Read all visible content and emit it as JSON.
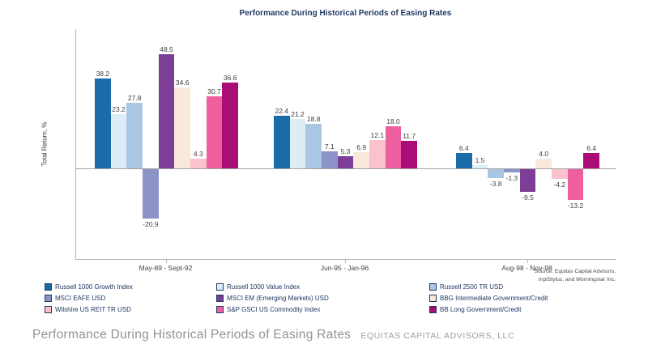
{
  "source": {
    "line1": "Source: Equitas Capital Advisors,",
    "line2": "mpiStylus, and Morningstar Inc."
  },
  "footer": {
    "caption": "Performance During Historical Periods of Easing Rates",
    "brand": "EQUITAS CAPITAL ADVISORS, LLC"
  },
  "chart_data": {
    "type": "bar",
    "title": "Performance During Historical Periods of Easing Rates",
    "xlabel": "",
    "ylabel": "Total Return, %",
    "ylim": [
      -38,
      59
    ],
    "grid": false,
    "legend_position": "bottom",
    "categories": [
      "May-89 - Sept-92",
      "Jun-95 - Jan-96",
      "Aug-98 - Nov-98"
    ],
    "series": [
      {
        "name": "Russell 1000 Growth Index",
        "color": "#1a6ca8",
        "values": [
          38.2,
          22.4,
          6.4
        ]
      },
      {
        "name": "Russell 1000 Value Index",
        "color": "#ddedf5",
        "values": [
          23.2,
          21.2,
          1.5
        ]
      },
      {
        "name": "Russell 2500 TR USD",
        "color": "#a9c6e2",
        "values": [
          27.8,
          18.8,
          -3.8
        ]
      },
      {
        "name": "MSCI EAFE USD",
        "color": "#8b93c7",
        "values": [
          -20.9,
          7.1,
          -1.3
        ]
      },
      {
        "name": "MSCI EM (Emerging Markets) USD",
        "color": "#7c3e97",
        "values": [
          48.5,
          5.3,
          -9.5
        ]
      },
      {
        "name": "BBG Intermediate Government/Credit",
        "color": "#fbe8dc",
        "values": [
          34.6,
          6.9,
          4.0
        ]
      },
      {
        "name": "Wilshire US REIT TR USD",
        "color": "#f9c2cc",
        "values": [
          4.3,
          12.1,
          -4.2
        ]
      },
      {
        "name": "S&P GSCI US Commodity Index",
        "color": "#ee5f9e",
        "values": [
          30.7,
          18.0,
          -13.2
        ]
      },
      {
        "name": "BB Long Government/Credit",
        "color": "#aa0d76",
        "values": [
          36.6,
          11.7,
          6.4
        ]
      }
    ],
    "value_labels": true,
    "text_color": "#1f3864"
  }
}
